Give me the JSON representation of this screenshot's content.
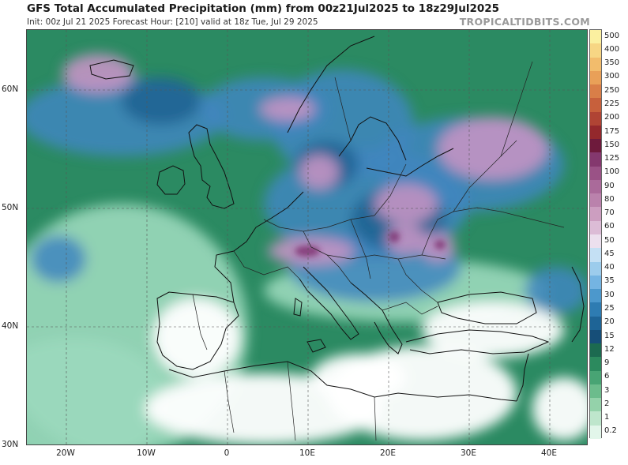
{
  "header": {
    "title": "GFS Total Accumulated Precipitation (mm) from 00z21Jul2025 to 18z29Jul2025",
    "subtitle": "Init: 00z Jul 21 2025   Forecast Hour: [210]   valid at 18z Tue, Jul 29 2025",
    "brand": "TROPICALTIDBITS.COM"
  },
  "axes": {
    "lat_labels": [
      "60N",
      "50N",
      "40N",
      "30N"
    ],
    "lon_labels": [
      "20W",
      "10W",
      "0",
      "10E",
      "20E",
      "30E",
      "40E"
    ]
  },
  "colorbar": {
    "levels": [
      "500",
      "400",
      "350",
      "300",
      "250",
      "225",
      "200",
      "175",
      "150",
      "125",
      "100",
      "90",
      "80",
      "70",
      "60",
      "50",
      "45",
      "40",
      "35",
      "30",
      "25",
      "20",
      "15",
      "12",
      "9",
      "6",
      "3",
      "2",
      "1",
      "0.2"
    ],
    "colors": [
      "#fbf0a0",
      "#f7d684",
      "#f2bc6c",
      "#e9a058",
      "#d97e48",
      "#c7603c",
      "#b04434",
      "#94282c",
      "#6e1a3c",
      "#84386e",
      "#9a5286",
      "#aa6a9a",
      "#ba82ac",
      "#cc9ec0",
      "#dcbcd6",
      "#ece0ee",
      "#c4e0f4",
      "#9cccec",
      "#74b4e2",
      "#4c98cc",
      "#2e7cb2",
      "#1e6496",
      "#164e78",
      "#1c6a50",
      "#2c8a5e",
      "#48a474",
      "#6cbc8c",
      "#94d2aa",
      "#bee6cc",
      "#e2f6ea"
    ]
  },
  "map_colors": {
    "ocean_base": "#2b8a62",
    "ocean_light": "#9bd9bc",
    "land_dry": "#ffffff",
    "wet_blue": "#3f86c0",
    "very_wet_purple": "#c493c4",
    "deep_blue": "#1d5f8e",
    "coast_line": "#111111",
    "border_line": "#222222"
  }
}
